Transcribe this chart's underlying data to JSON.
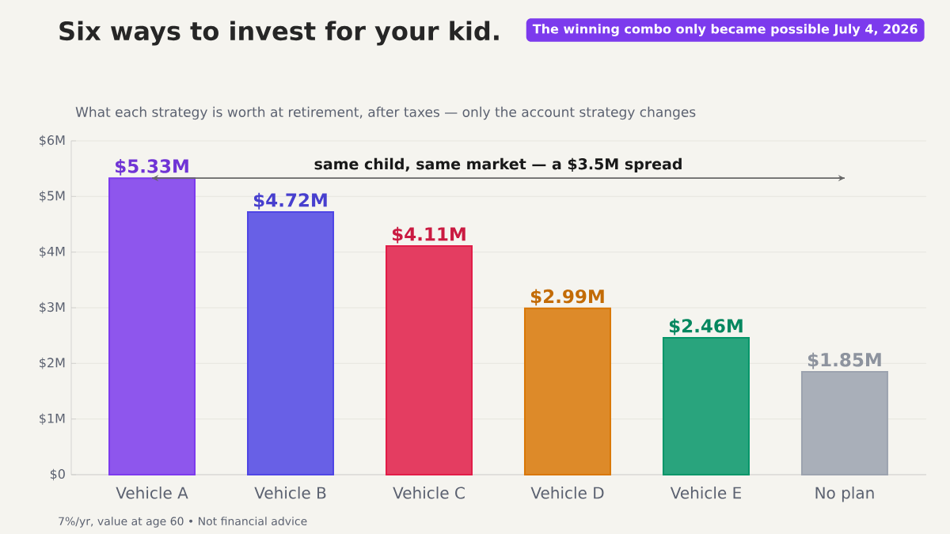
{
  "chart_data": {
    "type": "bar",
    "title": "Six ways to invest for your kid.",
    "subtitle": "What each strategy is worth at retirement, after taxes — only the account strategy changes",
    "categories": [
      "Vehicle A",
      "Vehicle B",
      "Vehicle C",
      "Vehicle D",
      "Vehicle E",
      "No plan"
    ],
    "values": [
      5.33,
      4.72,
      4.11,
      2.99,
      2.46,
      1.85
    ],
    "value_labels": [
      "$5.33M",
      "$4.72M",
      "$4.11M",
      "$2.99M",
      "$2.46M",
      "$1.85M"
    ],
    "colors": [
      "#7c3aed",
      "#4f46e5",
      "#e11d48",
      "#d97706",
      "#059669",
      "#9ca3af"
    ],
    "ylim": [
      0,
      6
    ],
    "yticks": [
      {
        "value": 0,
        "label": "$0"
      },
      {
        "value": 1,
        "label": "$1M"
      },
      {
        "value": 2,
        "label": "$2M"
      },
      {
        "value": 3,
        "label": "$3M"
      },
      {
        "value": 4,
        "label": "$4M"
      },
      {
        "value": 5,
        "label": "$5M"
      },
      {
        "value": 6,
        "label": "$6M"
      }
    ],
    "grid": "y",
    "ref_lines": [
      {
        "axis": "y",
        "value": 5.33,
        "label": "same child, same market — a $3.5M spread",
        "color": "#666666"
      }
    ],
    "annotations": [
      "The winning combo only became possible July 4, 2026",
      "7%/yr, value at age 60  •  Not financial advice"
    ]
  }
}
